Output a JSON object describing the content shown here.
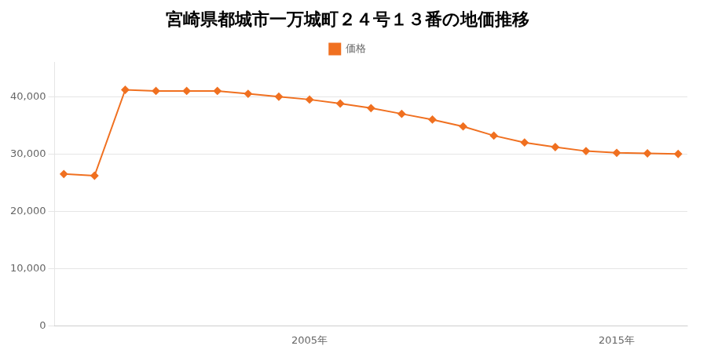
{
  "chart_data": {
    "type": "line",
    "title": "宮崎県都城市一万城町２４号１３番の地価推移",
    "x": [
      1997,
      1998,
      1999,
      2000,
      2001,
      2002,
      2003,
      2004,
      2005,
      2006,
      2007,
      2008,
      2009,
      2010,
      2011,
      2012,
      2013,
      2014,
      2015,
      2016,
      2017
    ],
    "series": [
      {
        "name": "価格",
        "color": "#f07020",
        "marker": "diamond",
        "line_style": "solid",
        "values": [
          26500,
          26200,
          41200,
          41000,
          41000,
          41000,
          40500,
          40000,
          39500,
          38800,
          38000,
          37000,
          36000,
          34800,
          33200,
          32000,
          31200,
          30500,
          30200,
          30100,
          30000
        ]
      }
    ],
    "xlim": [
      1996.7,
      2017.3
    ],
    "xticks": [
      {
        "value": 2005,
        "label": "2005年"
      },
      {
        "value": 2015,
        "label": "2015年"
      }
    ],
    "ylim": [
      0,
      46000
    ],
    "yticks": [
      0,
      {
        "value": 10000,
        "label": "10,000"
      },
      {
        "value": 20000,
        "label": "20,000"
      },
      {
        "value": 30000,
        "label": "30,000"
      },
      {
        "value": 40000,
        "label": "40,000"
      }
    ],
    "grid": "y",
    "legend": "top"
  }
}
